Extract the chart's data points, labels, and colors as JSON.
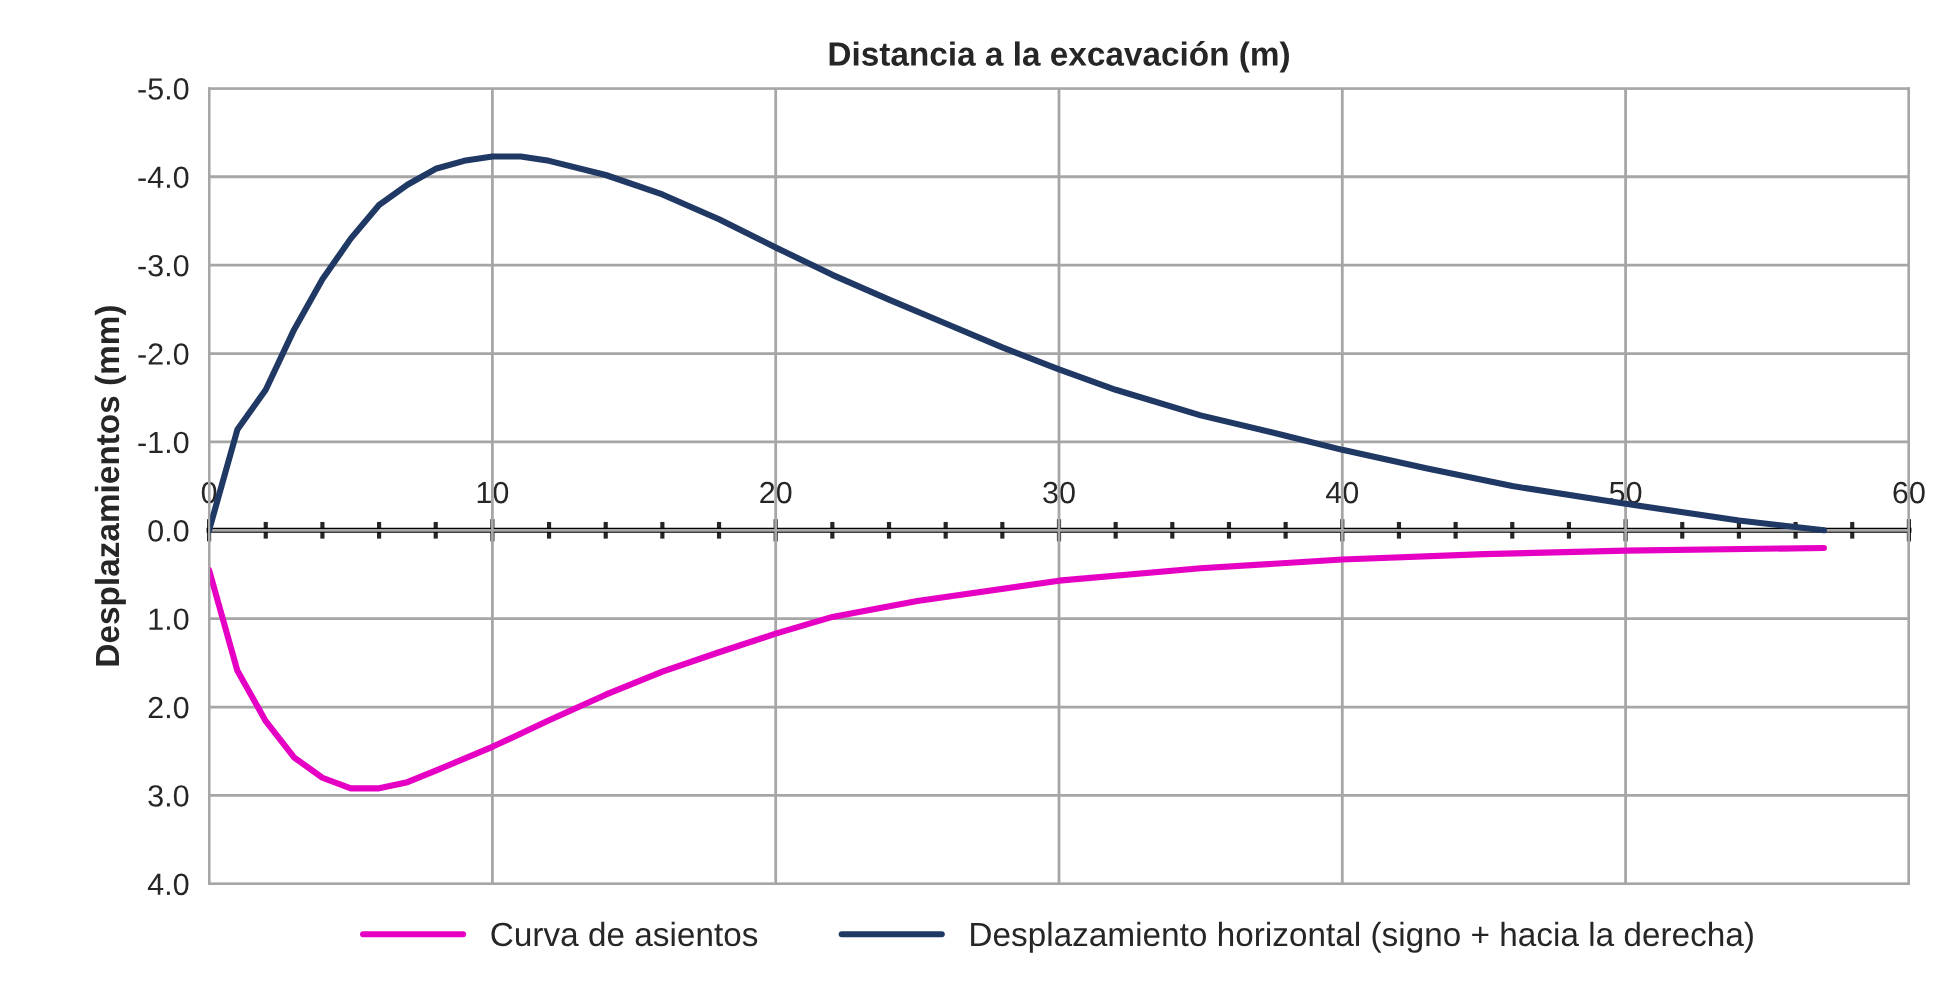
{
  "chart_data": {
    "type": "line",
    "xlabel": "Distancia a la excavación (m)",
    "ylabel": "Desplazamientos (mm)",
    "xlim": [
      0,
      60
    ],
    "xticks": [
      0,
      10,
      20,
      30,
      40,
      50,
      60
    ],
    "ylim": [
      4.0,
      -5.0
    ],
    "yticks": [
      {
        "value": -5,
        "label": "-5.0"
      },
      {
        "value": -4,
        "label": "-4.0"
      },
      {
        "value": -3,
        "label": "-3.0"
      },
      {
        "value": -2,
        "label": "-2.0"
      },
      {
        "value": -1,
        "label": "-1.0"
      },
      {
        "value": 0,
        "label": "0.0"
      },
      {
        "value": 1,
        "label": "1.0"
      },
      {
        "value": 2,
        "label": "2.0"
      },
      {
        "value": 3,
        "label": "3.0"
      },
      {
        "value": 4,
        "label": "4.0"
      }
    ],
    "grid": true,
    "legend": "bottom",
    "marker": "none",
    "line_style": "solid",
    "series": [
      {
        "name": "Curva de asientos",
        "color": "#e600c3",
        "x": [
          0,
          1,
          2,
          3,
          4,
          5,
          6,
          7,
          8,
          10,
          12,
          14,
          16,
          18,
          20,
          22,
          25,
          30,
          35,
          40,
          45,
          50,
          57
        ],
        "values": [
          0.45,
          1.59,
          2.16,
          2.57,
          2.8,
          2.92,
          2.92,
          2.85,
          2.72,
          2.45,
          2.15,
          1.86,
          1.6,
          1.38,
          1.17,
          0.98,
          0.8,
          0.57,
          0.43,
          0.33,
          0.27,
          0.23,
          0.2
        ]
      },
      {
        "name": "Desplazamiento horizontal (signo + hacia la derecha)",
        "color": "#203864",
        "x": [
          0,
          1,
          2,
          3,
          4,
          5,
          6,
          7,
          8,
          9,
          10,
          11,
          12,
          14,
          16,
          18,
          20,
          22,
          24,
          26,
          28,
          30,
          32,
          35,
          38,
          40,
          43,
          46,
          50,
          54,
          57
        ],
        "values": [
          0,
          -1.14,
          -1.59,
          -2.27,
          -2.84,
          -3.3,
          -3.68,
          -3.91,
          -4.09,
          -4.18,
          -4.23,
          -4.23,
          -4.18,
          -4.02,
          -3.8,
          -3.52,
          -3.2,
          -2.89,
          -2.61,
          -2.34,
          -2.07,
          -1.82,
          -1.59,
          -1.3,
          -1.07,
          -0.91,
          -0.7,
          -0.5,
          -0.3,
          -0.11,
          0
        ]
      }
    ]
  }
}
